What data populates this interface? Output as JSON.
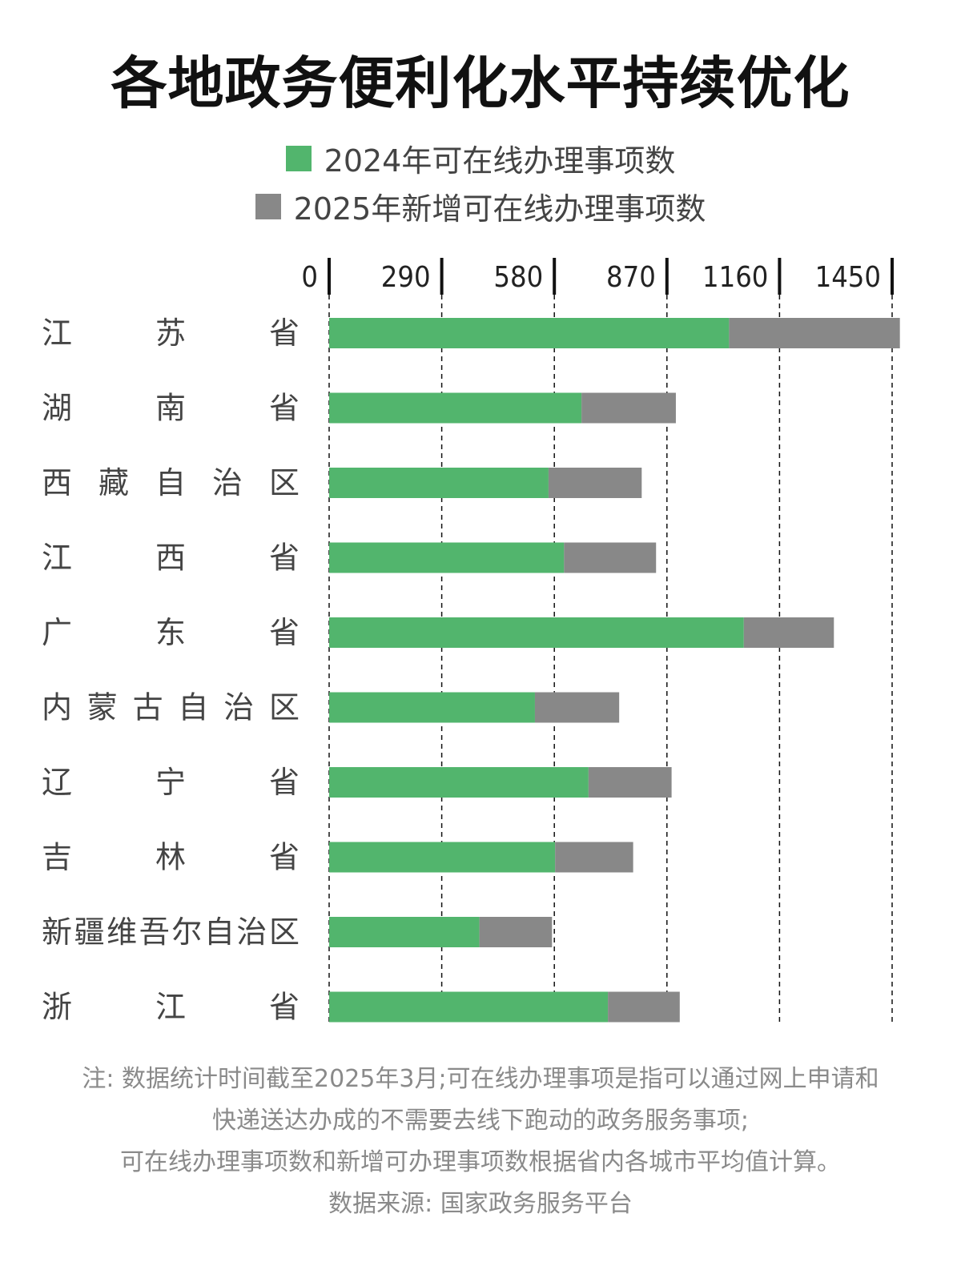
{
  "title": "各地政务便利化水平持续优化",
  "legend": [
    {
      "label": "2024年可在线办理事项数",
      "color": "#52b56d"
    },
    {
      "label": "2025年新增可在线办理事项数",
      "color": "#888888"
    }
  ],
  "chart_data": {
    "type": "bar",
    "orientation": "horizontal",
    "stacked": true,
    "categories": [
      "江苏省",
      "湖南省",
      "西藏自治区",
      "江西省",
      "广东省",
      "内蒙古自治区",
      "辽宁省",
      "吉林省",
      "新疆维吾尔自治区",
      "浙江省"
    ],
    "series": [
      {
        "name": "2024年可在线办理事项数",
        "color": "#52b56d",
        "values": [
          1030,
          650,
          565,
          605,
          1068,
          530,
          668,
          582,
          387,
          718
        ]
      },
      {
        "name": "2025年新增可在线办理事项数",
        "color": "#888888",
        "values": [
          440,
          243,
          240,
          237,
          232,
          217,
          214,
          201,
          187,
          185
        ]
      }
    ],
    "xlim": [
      0,
      1450
    ],
    "ticks": [
      0,
      290,
      580,
      870,
      1160,
      1450
    ],
    "tick_labels": [
      "0",
      "290",
      "580",
      "870",
      "1160",
      "1450"
    ],
    "grid": "dashed vertical",
    "legend_position": "top-center"
  },
  "footer": {
    "note_lines": [
      "注: 数据统计时间截至2025年3月;可在线办理事项是指可以通过网上申请和",
      "快递送达办成的不需要去线下跑动的政务服务事项;",
      "可在线办理事项数和新增可办理事项数根据省内各城市平均值计算。"
    ],
    "source": "数据来源: 国家政务服务平台"
  }
}
